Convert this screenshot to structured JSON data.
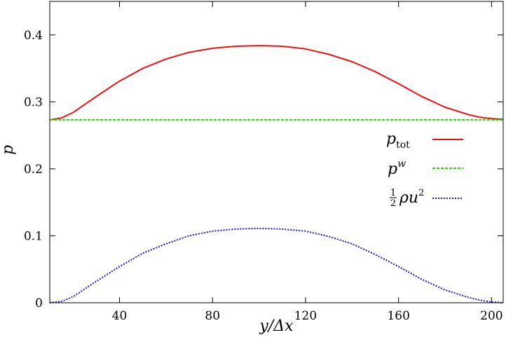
{
  "chart_data": {
    "type": "line",
    "xlabel": "y/Δx",
    "ylabel": "p",
    "xlim": [
      10,
      205
    ],
    "ylim": [
      0,
      0.45
    ],
    "xticks": [
      40,
      80,
      120,
      160,
      200
    ],
    "yticks": [
      0,
      0.1,
      0.2,
      0.3,
      0.4
    ],
    "xtick_labels": [
      "40",
      "80",
      "120",
      "160",
      "200"
    ],
    "ytick_labels": [
      "0",
      "0.1",
      "0.2",
      "0.3",
      "0.4"
    ],
    "grid": false,
    "legend_position": "right",
    "series": [
      {
        "name": "p_tot",
        "color": "#ee1111",
        "style": "solid",
        "x": [
          10,
          15,
          20,
          30,
          40,
          50,
          60,
          70,
          80,
          90,
          100,
          110,
          120,
          130,
          140,
          150,
          160,
          170,
          180,
          190,
          195,
          200,
          205
        ],
        "y": [
          0.273,
          0.276,
          0.284,
          0.308,
          0.331,
          0.35,
          0.364,
          0.374,
          0.38,
          0.383,
          0.384,
          0.383,
          0.379,
          0.371,
          0.36,
          0.345,
          0.327,
          0.308,
          0.292,
          0.281,
          0.277,
          0.275,
          0.274
        ]
      },
      {
        "name": "p^w",
        "color": "#22dd00",
        "style": "dashed",
        "x": [
          10,
          40,
          80,
          120,
          160,
          200,
          205
        ],
        "y": [
          0.273,
          0.273,
          0.273,
          0.273,
          0.273,
          0.273,
          0.273
        ]
      },
      {
        "name": "½ρu²",
        "color": "#1111ee",
        "style": "dotted",
        "x": [
          10,
          15,
          20,
          30,
          40,
          50,
          60,
          70,
          80,
          90,
          100,
          110,
          120,
          130,
          140,
          150,
          160,
          170,
          180,
          190,
          195,
          200,
          205
        ],
        "y": [
          0.0,
          0.002,
          0.009,
          0.032,
          0.054,
          0.074,
          0.088,
          0.1,
          0.107,
          0.11,
          0.111,
          0.11,
          0.107,
          0.099,
          0.088,
          0.072,
          0.054,
          0.035,
          0.019,
          0.008,
          0.004,
          0.001,
          0.0
        ]
      }
    ]
  }
}
